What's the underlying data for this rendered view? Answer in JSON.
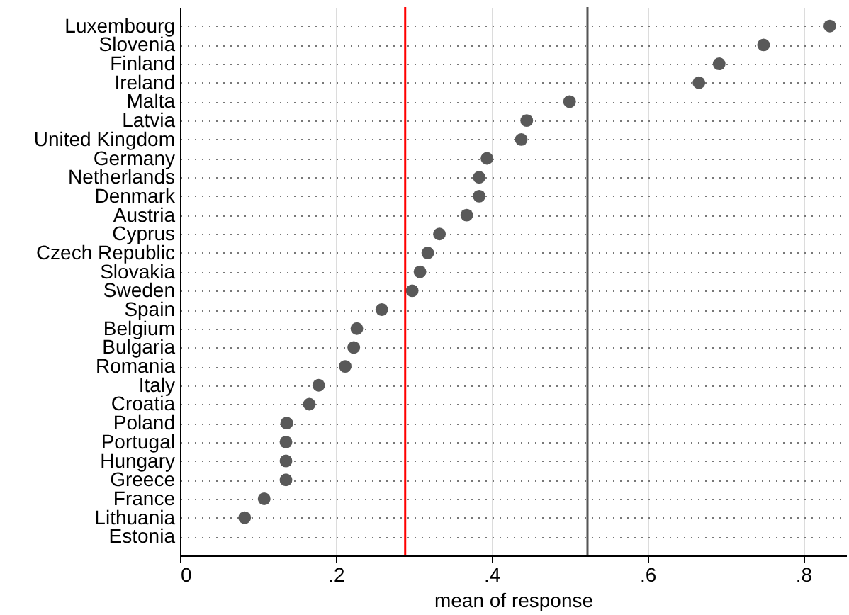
{
  "chart_data": {
    "type": "scatter",
    "categories": [
      "Luxembourg",
      "Slovenia",
      "Finland",
      "Ireland",
      "Malta",
      "Latvia",
      "United Kingdom",
      "Germany",
      "Netherlands",
      "Denmark",
      "Austria",
      "Cyprus",
      "Czech Republic",
      "Slovakia",
      "Sweden",
      "Spain",
      "Belgium",
      "Bulgaria",
      "Romania",
      "Italy",
      "Croatia",
      "Poland",
      "Portugal",
      "Hungary",
      "Greece",
      "France",
      "Lithuania",
      "Estonia"
    ],
    "orientation": "horizontal",
    "series": [
      {
        "color": "#595959",
        "values": [
          0.834,
          0.749,
          0.692,
          0.666,
          0.5,
          0.445,
          0.438,
          0.394,
          0.384,
          0.384,
          0.368,
          0.333,
          0.318,
          0.308,
          0.298,
          0.259,
          0.227,
          0.223,
          0.212,
          0.178,
          0.166,
          0.137,
          0.136,
          0.136,
          0.136,
          0.108,
          0.083,
          null
        ]
      }
    ],
    "xlabel": "mean of response",
    "xlim": [
      0,
      0.855
    ],
    "xticks": [
      0,
      {
        "value": 0.2,
        "label": ".2"
      },
      {
        "value": 0.4,
        "label": ".4"
      },
      {
        "value": 0.6,
        "label": ".6"
      },
      {
        "value": 0.8,
        "label": ".8"
      }
    ],
    "ref_lines": [
      {
        "axis": "x",
        "value": 0.289,
        "color": "#ff0000"
      },
      {
        "axis": "x",
        "value": 0.523,
        "color": "#555555"
      }
    ],
    "grid": true,
    "marker": "circle"
  }
}
